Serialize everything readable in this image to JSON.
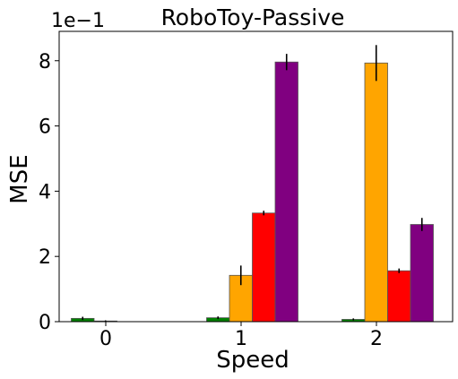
{
  "chart_data": {
    "type": "bar",
    "title": "RoboToy-Passive",
    "xlabel": "Speed",
    "ylabel": "MSE",
    "y_multiplier_label": "1e−1",
    "categories": [
      "0",
      "1",
      "2"
    ],
    "yticks": [
      "0",
      "2",
      "4",
      "6",
      "8"
    ],
    "ylim": [
      0,
      8.9
    ],
    "grid": false,
    "legend": "none",
    "series": [
      {
        "color": "#008000",
        "values": [
          0.1,
          0.12,
          0.07
        ],
        "errors": [
          0.05,
          0.04,
          0.03
        ]
      },
      {
        "color": "#ffa500",
        "values": [
          0.02,
          1.42,
          7.93
        ],
        "errors": [
          0.02,
          0.3,
          0.55
        ]
      },
      {
        "color": "#ff0000",
        "values": [
          0.0,
          3.33,
          1.56
        ],
        "errors": [
          0.01,
          0.07,
          0.07
        ]
      },
      {
        "color": "#800080",
        "values": [
          0.0,
          7.96,
          2.98
        ],
        "errors": [
          0.01,
          0.25,
          0.2
        ]
      }
    ]
  }
}
